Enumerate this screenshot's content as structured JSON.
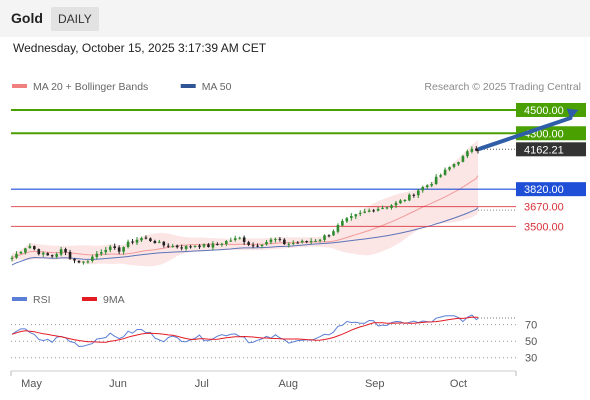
{
  "header": {
    "title": "Gold",
    "timeframe": "DAILY"
  },
  "datetime": "Wednesday, October 15, 2025 3:17:39 AM CET",
  "credit": "Research © 2025 Trading Central",
  "legend": [
    {
      "label": "MA 20 + Bollinger Bands",
      "color": "#f08080"
    },
    {
      "label": "MA 50",
      "color": "#2f5597"
    }
  ],
  "rsi_legend": [
    {
      "label": "RSI",
      "color": "#5b7fd6"
    },
    {
      "label": "9MA",
      "color": "#e31b23"
    }
  ],
  "colors": {
    "resistance": "#4aa000",
    "pivot": "#1f4fd6",
    "support": "#d9323a",
    "current": "#333333",
    "arrow": "#2f5da8"
  },
  "chart_data": {
    "type": "candlestick",
    "price_range": [
      3040,
      4620
    ],
    "x_months": [
      "May",
      "Jun",
      "Jul",
      "Aug",
      "Sep",
      "Oct"
    ],
    "month_start_day": [
      0,
      31,
      61,
      92,
      123,
      153
    ],
    "last_day": 167,
    "projection_day": 203,
    "projection_target": 4500,
    "levels": [
      {
        "value": 4500,
        "label": "4500.00",
        "kind": "resistance"
      },
      {
        "value": 4300,
        "label": "4300.00",
        "kind": "resistance"
      },
      {
        "value": 4162.21,
        "label": "4162.21",
        "kind": "current"
      },
      {
        "value": 3820,
        "label": "3820.00",
        "kind": "pivot"
      },
      {
        "value": 3670,
        "label": "3670.00",
        "kind": "support"
      },
      {
        "value": 3500,
        "label": "3500.00",
        "kind": "support"
      }
    ],
    "price_keypoints": [
      [
        0,
        3230
      ],
      [
        3,
        3290
      ],
      [
        6,
        3340
      ],
      [
        10,
        3270
      ],
      [
        14,
        3240
      ],
      [
        18,
        3300
      ],
      [
        22,
        3210
      ],
      [
        26,
        3190
      ],
      [
        30,
        3260
      ],
      [
        34,
        3320
      ],
      [
        38,
        3290
      ],
      [
        42,
        3360
      ],
      [
        46,
        3400
      ],
      [
        50,
        3380
      ],
      [
        54,
        3340
      ],
      [
        58,
        3330
      ],
      [
        62,
        3320
      ],
      [
        66,
        3340
      ],
      [
        70,
        3330
      ],
      [
        74,
        3350
      ],
      [
        78,
        3380
      ],
      [
        82,
        3400
      ],
      [
        86,
        3330
      ],
      [
        90,
        3360
      ],
      [
        94,
        3390
      ],
      [
        98,
        3350
      ],
      [
        102,
        3360
      ],
      [
        106,
        3370
      ],
      [
        110,
        3390
      ],
      [
        114,
        3440
      ],
      [
        118,
        3530
      ],
      [
        122,
        3580
      ],
      [
        126,
        3620
      ],
      [
        130,
        3650
      ],
      [
        134,
        3670
      ],
      [
        138,
        3700
      ],
      [
        142,
        3750
      ],
      [
        146,
        3820
      ],
      [
        150,
        3870
      ],
      [
        154,
        3950
      ],
      [
        158,
        4030
      ],
      [
        162,
        4100
      ],
      [
        165,
        4180
      ],
      [
        167,
        4162
      ]
    ],
    "rsi": {
      "range": [
        20,
        95
      ],
      "levels": [
        70,
        50,
        30
      ],
      "keypoints": [
        [
          0,
          60
        ],
        [
          3,
          66
        ],
        [
          6,
          60
        ],
        [
          10,
          52
        ],
        [
          14,
          50
        ],
        [
          18,
          56
        ],
        [
          22,
          48
        ],
        [
          26,
          44
        ],
        [
          30,
          52
        ],
        [
          34,
          58
        ],
        [
          38,
          54
        ],
        [
          42,
          60
        ],
        [
          46,
          64
        ],
        [
          50,
          58
        ],
        [
          54,
          52
        ],
        [
          58,
          54
        ],
        [
          62,
          52
        ],
        [
          66,
          55
        ],
        [
          70,
          53
        ],
        [
          74,
          56
        ],
        [
          78,
          60
        ],
        [
          82,
          58
        ],
        [
          86,
          48
        ],
        [
          90,
          52
        ],
        [
          94,
          56
        ],
        [
          98,
          50
        ],
        [
          102,
          52
        ],
        [
          106,
          50
        ],
        [
          110,
          52
        ],
        [
          114,
          60
        ],
        [
          118,
          70
        ],
        [
          122,
          74
        ],
        [
          126,
          73
        ],
        [
          130,
          72
        ],
        [
          134,
          70
        ],
        [
          138,
          71
        ],
        [
          142,
          74
        ],
        [
          146,
          72
        ],
        [
          150,
          74
        ],
        [
          154,
          78
        ],
        [
          158,
          80
        ],
        [
          162,
          76
        ],
        [
          165,
          79
        ],
        [
          167,
          78
        ]
      ]
    }
  }
}
